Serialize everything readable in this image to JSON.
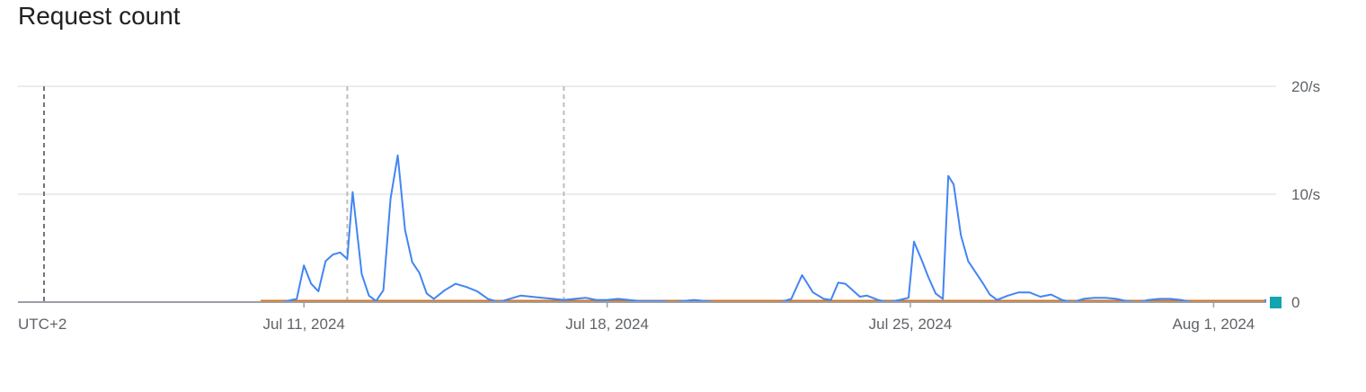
{
  "header": {
    "title": "Request count"
  },
  "chart_data": {
    "type": "line",
    "title": "Request count",
    "xlabel": "",
    "ylabel": "",
    "timezone_label": "UTC+2",
    "x_start": "2024-07-05",
    "x_end": "2024-08-05",
    "ylim": [
      0,
      20
    ],
    "grid": true,
    "y_ticks": [
      {
        "value": 20,
        "label": "20/s"
      },
      {
        "value": 10,
        "label": "10/s"
      },
      {
        "value": 0,
        "label": "0"
      }
    ],
    "x_ticks": [
      {
        "date": "2024-07-11",
        "label": "Jul 11, 2024"
      },
      {
        "date": "2024-07-18",
        "label": "Jul 18, 2024"
      },
      {
        "date": "2024-07-25",
        "label": "Jul 25, 2024"
      },
      {
        "date": "2024-08-01",
        "label": "Aug 1, 2024"
      }
    ],
    "markers": [
      "2024-07-05",
      "2024-07-12",
      "2024-07-17"
    ],
    "series": [
      {
        "color": "#4285f4",
        "points": [
          [
            "2024-07-10T00:00",
            0.0
          ],
          [
            "2024-07-10T12:00",
            0.0
          ],
          [
            "2024-07-10T20:00",
            0.3
          ],
          [
            "2024-07-11T00:00",
            3.4
          ],
          [
            "2024-07-11T04:00",
            1.7
          ],
          [
            "2024-07-11T08:00",
            1.0
          ],
          [
            "2024-07-11T12:00",
            3.8
          ],
          [
            "2024-07-11T16:00",
            4.4
          ],
          [
            "2024-07-11T20:00",
            4.6
          ],
          [
            "2024-07-12T00:00",
            4.0
          ],
          [
            "2024-07-12T03:00",
            10.2
          ],
          [
            "2024-07-12T08:00",
            2.6
          ],
          [
            "2024-07-12T12:00",
            0.6
          ],
          [
            "2024-07-12T16:00",
            0.1
          ],
          [
            "2024-07-12T20:00",
            1.1
          ],
          [
            "2024-07-13T00:00",
            9.6
          ],
          [
            "2024-07-13T04:00",
            13.6
          ],
          [
            "2024-07-13T08:00",
            6.7
          ],
          [
            "2024-07-13T12:00",
            3.7
          ],
          [
            "2024-07-13T16:00",
            2.7
          ],
          [
            "2024-07-13T20:00",
            0.8
          ],
          [
            "2024-07-14T00:00",
            0.3
          ],
          [
            "2024-07-14T06:00",
            1.1
          ],
          [
            "2024-07-14T12:00",
            1.7
          ],
          [
            "2024-07-14T18:00",
            1.4
          ],
          [
            "2024-07-15T00:00",
            1.0
          ],
          [
            "2024-07-15T06:00",
            0.3
          ],
          [
            "2024-07-15T12:00",
            0.0
          ],
          [
            "2024-07-15T18:00",
            0.3
          ],
          [
            "2024-07-16T00:00",
            0.6
          ],
          [
            "2024-07-16T06:00",
            0.5
          ],
          [
            "2024-07-16T12:00",
            0.4
          ],
          [
            "2024-07-16T18:00",
            0.3
          ],
          [
            "2024-07-17T00:00",
            0.2
          ],
          [
            "2024-07-17T06:00",
            0.3
          ],
          [
            "2024-07-17T12:00",
            0.4
          ],
          [
            "2024-07-17T18:00",
            0.2
          ],
          [
            "2024-07-18T00:00",
            0.2
          ],
          [
            "2024-07-18T06:00",
            0.3
          ],
          [
            "2024-07-18T12:00",
            0.2
          ],
          [
            "2024-07-18T18:00",
            0.1
          ],
          [
            "2024-07-19T00:00",
            0.1
          ],
          [
            "2024-07-19T06:00",
            0.1
          ],
          [
            "2024-07-19T12:00",
            0.0
          ],
          [
            "2024-07-19T18:00",
            0.1
          ],
          [
            "2024-07-20T00:00",
            0.2
          ],
          [
            "2024-07-20T06:00",
            0.1
          ],
          [
            "2024-07-20T12:00",
            0.0
          ],
          [
            "2024-07-21T00:00",
            0.0
          ],
          [
            "2024-07-21T12:00",
            0.0
          ],
          [
            "2024-07-22T00:00",
            0.0
          ],
          [
            "2024-07-22T06:00",
            0.3
          ],
          [
            "2024-07-22T12:00",
            2.5
          ],
          [
            "2024-07-22T18:00",
            0.9
          ],
          [
            "2024-07-23T00:00",
            0.3
          ],
          [
            "2024-07-23T04:00",
            0.2
          ],
          [
            "2024-07-23T08:00",
            1.8
          ],
          [
            "2024-07-23T12:00",
            1.7
          ],
          [
            "2024-07-23T16:00",
            1.1
          ],
          [
            "2024-07-23T20:00",
            0.5
          ],
          [
            "2024-07-24T00:00",
            0.6
          ],
          [
            "2024-07-24T06:00",
            0.2
          ],
          [
            "2024-07-24T12:00",
            0.0
          ],
          [
            "2024-07-24T18:00",
            0.2
          ],
          [
            "2024-07-24T23:00",
            0.4
          ],
          [
            "2024-07-25T02:00",
            5.6
          ],
          [
            "2024-07-25T06:00",
            4.0
          ],
          [
            "2024-07-25T10:00",
            2.3
          ],
          [
            "2024-07-25T14:00",
            0.8
          ],
          [
            "2024-07-25T18:00",
            0.3
          ],
          [
            "2024-07-25T21:00",
            11.7
          ],
          [
            "2024-07-26T00:00",
            10.9
          ],
          [
            "2024-07-26T04:00",
            6.2
          ],
          [
            "2024-07-26T08:00",
            3.8
          ],
          [
            "2024-07-26T12:00",
            2.8
          ],
          [
            "2024-07-26T16:00",
            1.8
          ],
          [
            "2024-07-26T20:00",
            0.7
          ],
          [
            "2024-07-27T00:00",
            0.2
          ],
          [
            "2024-07-27T06:00",
            0.6
          ],
          [
            "2024-07-27T12:00",
            0.9
          ],
          [
            "2024-07-27T18:00",
            0.9
          ],
          [
            "2024-07-28T00:00",
            0.5
          ],
          [
            "2024-07-28T06:00",
            0.7
          ],
          [
            "2024-07-28T12:00",
            0.2
          ],
          [
            "2024-07-28T18:00",
            0.0
          ],
          [
            "2024-07-29T00:00",
            0.3
          ],
          [
            "2024-07-29T06:00",
            0.4
          ],
          [
            "2024-07-29T12:00",
            0.4
          ],
          [
            "2024-07-29T18:00",
            0.3
          ],
          [
            "2024-07-30T00:00",
            0.1
          ],
          [
            "2024-07-30T06:00",
            0.0
          ],
          [
            "2024-07-30T12:00",
            0.2
          ],
          [
            "2024-07-30T18:00",
            0.3
          ],
          [
            "2024-07-31T00:00",
            0.3
          ],
          [
            "2024-07-31T06:00",
            0.2
          ],
          [
            "2024-07-31T12:00",
            0.0
          ],
          [
            "2024-08-01T00:00",
            0.0
          ],
          [
            "2024-08-01T12:00",
            0.0
          ],
          [
            "2024-08-02T00:00",
            0.0
          ],
          [
            "2024-08-02T12:00",
            0.0
          ],
          [
            "2024-08-03T00:00",
            0.0
          ],
          [
            "2024-08-03T06:00",
            0.2
          ],
          [
            "2024-08-03T12:00",
            0.0
          ],
          [
            "2024-08-04T00:00",
            0.0
          ],
          [
            "2024-08-04T12:00",
            0.0
          ],
          [
            "2024-08-05T00:00",
            0.0
          ],
          [
            "2024-08-05T12:00",
            0.0
          ],
          [
            "2024-08-06T00:00",
            0.0
          ],
          [
            "2024-08-06T12:00",
            0.0
          ],
          [
            "2024-08-07T00:00",
            0.0
          ]
        ]
      },
      {
        "color": "#e8710a",
        "points": [
          [
            "2024-07-10T00:00",
            0.1
          ],
          [
            "2024-07-12T00:00",
            0.1
          ],
          [
            "2024-07-13T12:00",
            0.1
          ],
          [
            "2024-07-16T00:00",
            0.1
          ],
          [
            "2024-07-19T00:00",
            0.1
          ],
          [
            "2024-07-22T00:00",
            0.1
          ],
          [
            "2024-07-25T00:00",
            0.1
          ],
          [
            "2024-07-28T00:00",
            0.1
          ],
          [
            "2024-07-31T00:00",
            0.1
          ],
          [
            "2024-08-03T00:00",
            0.1
          ],
          [
            "2024-08-07T00:00",
            0.1
          ]
        ]
      },
      {
        "color": "#d93025",
        "points": [
          [
            "2024-07-10T00:00",
            0.05
          ],
          [
            "2024-07-14T00:00",
            0.05
          ],
          [
            "2024-07-18T00:00",
            0.05
          ],
          [
            "2024-07-22T00:00",
            0.05
          ],
          [
            "2024-07-26T00:00",
            0.05
          ],
          [
            "2024-07-30T00:00",
            0.05
          ],
          [
            "2024-08-03T00:00",
            0.05
          ],
          [
            "2024-08-07T00:00",
            0.05
          ]
        ]
      },
      {
        "color": "#9334e6",
        "points": [
          [
            "2024-07-10T00:00",
            0.02
          ],
          [
            "2024-07-15T00:00",
            0.02
          ],
          [
            "2024-07-20T00:00",
            0.02
          ],
          [
            "2024-07-25T00:00",
            0.02
          ],
          [
            "2024-07-30T00:00",
            0.02
          ],
          [
            "2024-08-04T00:00",
            0.02
          ],
          [
            "2024-08-07T00:00",
            0.02
          ]
        ]
      },
      {
        "color": "#12939a",
        "points": [
          [
            "2024-08-04T00:00",
            0.02
          ],
          [
            "2024-08-07T00:00",
            0.02
          ]
        ]
      }
    ],
    "end_marker_color": "#12a4af"
  }
}
